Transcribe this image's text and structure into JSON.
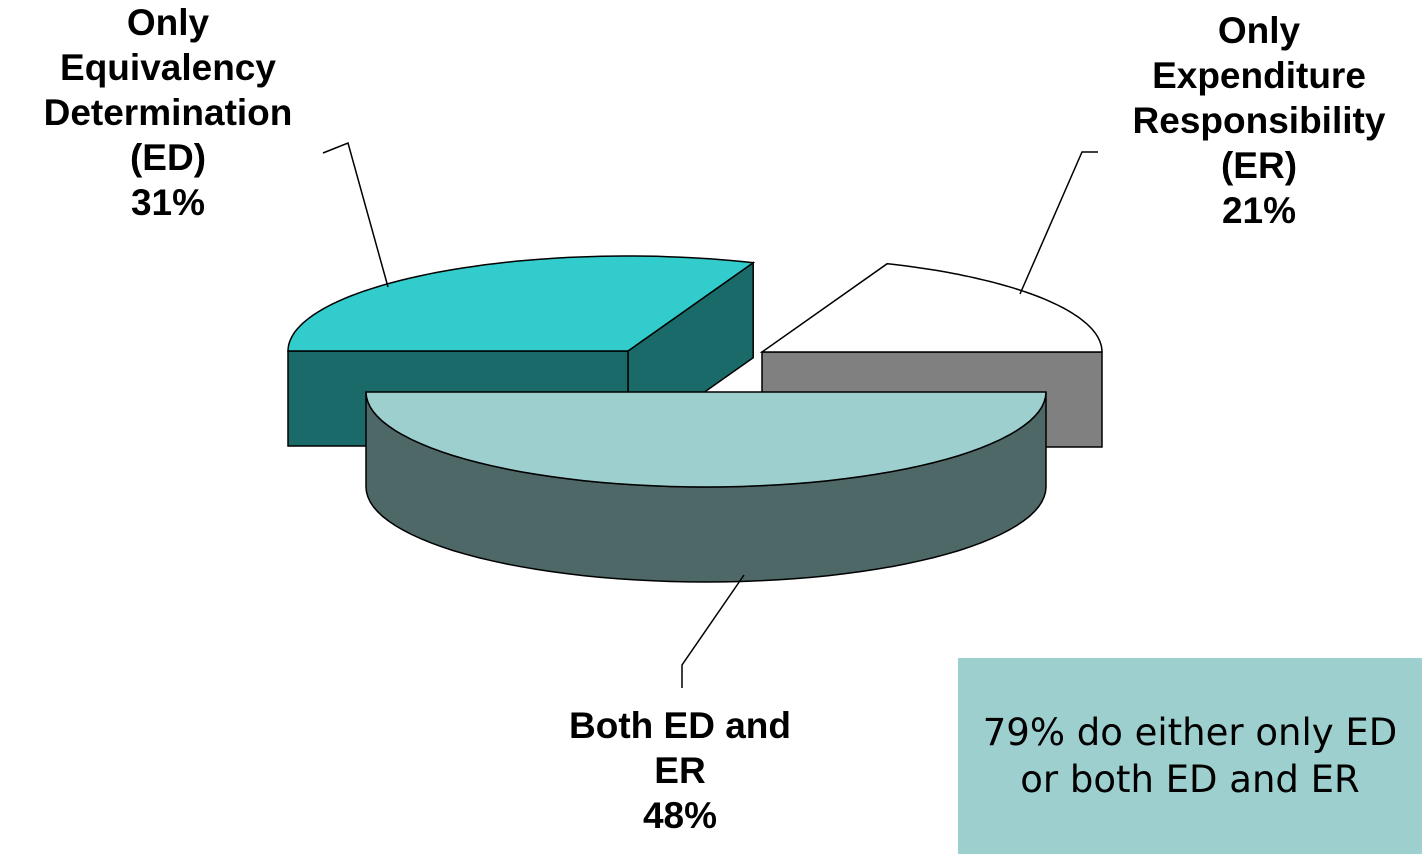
{
  "chart_data": {
    "type": "pie",
    "three_d": true,
    "exploded": true,
    "slices": [
      {
        "key": "ed",
        "label_lines": [
          "Only",
          "Equivalency",
          "Determination",
          "(ED)"
        ],
        "value": 31,
        "value_label": "31%",
        "top_color": "#33cccc",
        "side_color": "#1b6a6a"
      },
      {
        "key": "er",
        "label_lines": [
          "Only",
          "Expenditure",
          "Responsibility",
          "(ER)"
        ],
        "value": 21,
        "value_label": "21%",
        "top_color": "#ffffff",
        "side_color": "#808080"
      },
      {
        "key": "both",
        "label_lines": [
          "Both ED and",
          "ER"
        ],
        "value": 48,
        "value_label": "48%",
        "top_color": "#9dcfcf",
        "side_color": "#4e6767"
      }
    ]
  },
  "callout": {
    "text": "79% do either only ED or both ED and ER",
    "background": "#9dcfcf"
  }
}
